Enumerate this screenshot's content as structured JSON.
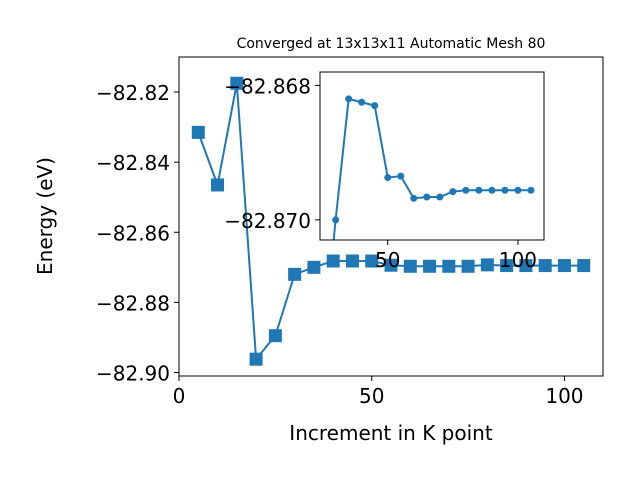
{
  "chart_data": [
    {
      "type": "line",
      "title": "Converged at 13x13x11 Automatic Mesh 80",
      "xlabel": "Increment in K point",
      "ylabel": "Energy (eV)",
      "xlim": [
        0,
        110
      ],
      "ylim": [
        -82.901,
        -82.81
      ],
      "xticks": [
        0,
        50,
        100
      ],
      "yticks": [
        -82.82,
        -82.84,
        -82.86,
        -82.88,
        -82.9
      ],
      "xtick_labels": [
        "0",
        "50",
        "100"
      ],
      "ytick_labels": [
        "−82.82",
        "−82.84",
        "−82.86",
        "−82.88",
        "−82.90"
      ],
      "marker": "square",
      "color": "#1f77b4",
      "series": [
        {
          "x": [
            5,
            10,
            15,
            20,
            25,
            30,
            35,
            40,
            45,
            50,
            55,
            60,
            65,
            70,
            75,
            80,
            85,
            90,
            95,
            100,
            105
          ],
          "y": [
            -82.8315,
            -82.8465,
            -82.8175,
            -82.8962,
            -82.8895,
            -82.872,
            -82.87,
            -82.8682,
            -82.8682,
            -82.8682,
            -82.8694,
            -82.8697,
            -82.8697,
            -82.8697,
            -82.8697,
            -82.8693,
            -82.8695,
            -82.8695,
            -82.8695,
            -82.8695,
            -82.8695
          ]
        }
      ]
    },
    {
      "type": "line",
      "title": "",
      "xlabel": "",
      "ylabel": "",
      "xlim": [
        24,
        110
      ],
      "ylim": [
        -82.8703,
        -82.8678
      ],
      "xticks": [
        50,
        100
      ],
      "yticks": [
        -82.87,
        -82.868
      ],
      "xtick_labels": [
        "50",
        "100"
      ],
      "ytick_labels": [
        "−82.870",
        "−82.868"
      ],
      "marker": "circle",
      "color": "#1f77b4",
      "series": [
        {
          "x": [
            25,
            30,
            35,
            40,
            45,
            50,
            55,
            60,
            65,
            70,
            75,
            80,
            85,
            90,
            95,
            100,
            105
          ],
          "y": [
            -82.872,
            -82.87,
            -82.8682,
            -82.86825,
            -82.8683,
            -82.86937,
            -82.86935,
            -82.86968,
            -82.86966,
            -82.86966,
            -82.86958,
            -82.86956,
            -82.86956,
            -82.86956,
            -82.86956,
            -82.86956,
            -82.86956
          ]
        }
      ]
    }
  ]
}
